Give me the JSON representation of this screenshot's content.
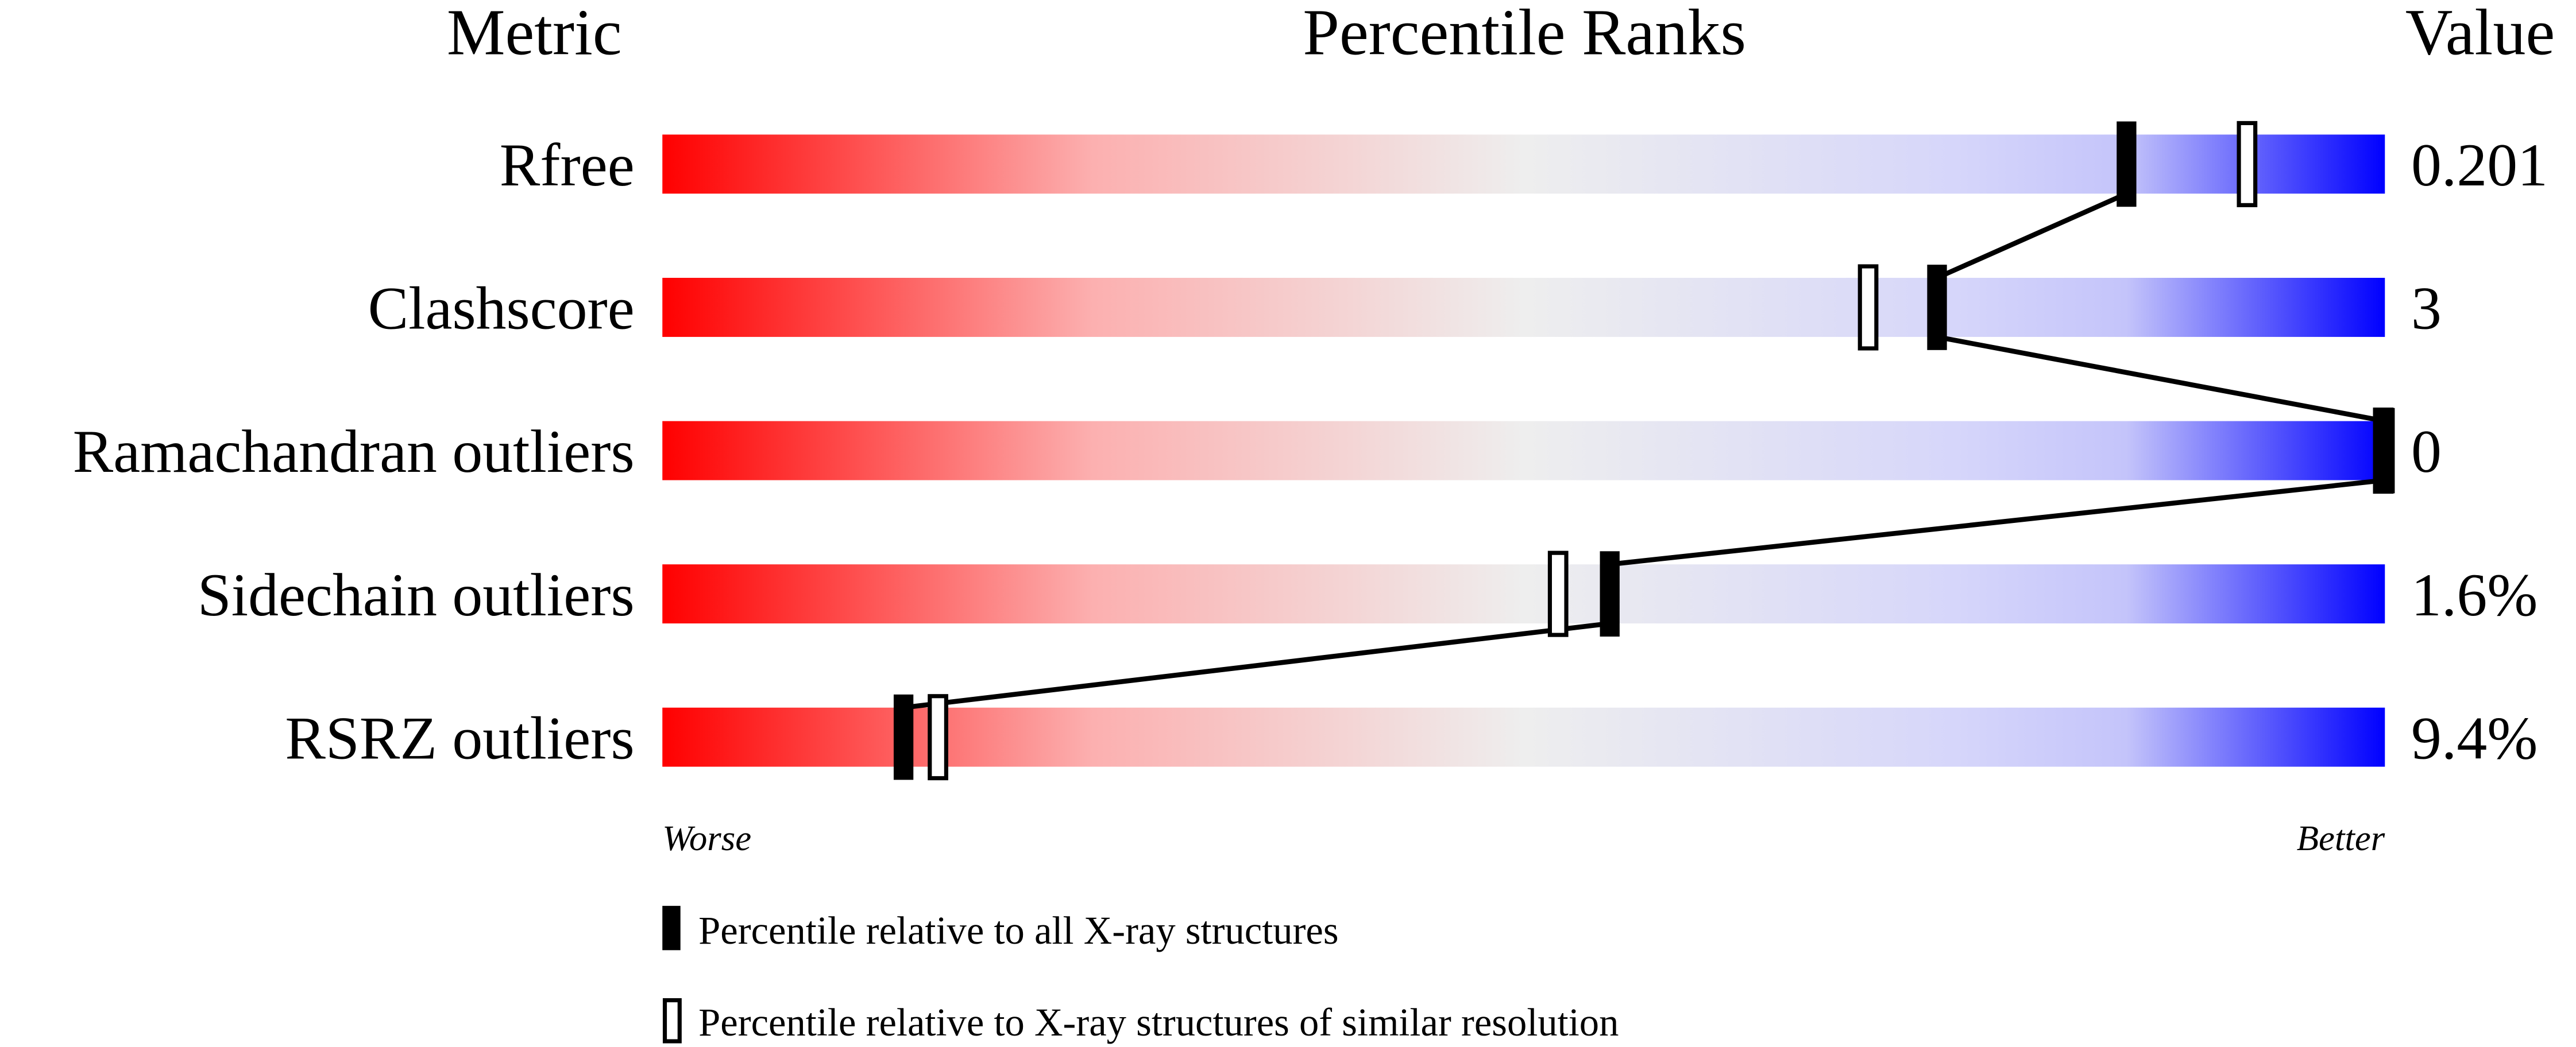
{
  "chart_data": {
    "type": "percentile-slider",
    "headers": {
      "metric": "Metric",
      "ranks": "Percentile Ranks",
      "value": "Value"
    },
    "xlim": [
      0,
      100
    ],
    "metrics": [
      {
        "name": "Rfree",
        "value": "0.201",
        "percentile_all": 85,
        "percentile_similar": 92
      },
      {
        "name": "Clashscore",
        "value": "3",
        "percentile_all": 74,
        "percentile_similar": 70
      },
      {
        "name": "Ramachandran outliers",
        "value": "0",
        "percentile_all": 100,
        "percentile_similar": 100
      },
      {
        "name": "Sidechain outliers",
        "value": "1.6%",
        "percentile_all": 55,
        "percentile_similar": 52
      },
      {
        "name": "RSRZ outliers",
        "value": "9.4%",
        "percentile_all": 14,
        "percentile_similar": 16
      }
    ],
    "axis_labels": {
      "left": "Worse",
      "right": "Better"
    },
    "legend": {
      "all": "Percentile relative to all X-ray structures",
      "similar": "Percentile relative to X-ray structures of similar resolution"
    },
    "colors": {
      "worse": "#ff0000",
      "middle": "#eeeeee",
      "better": "#0000ff",
      "marker": "#000000"
    }
  }
}
